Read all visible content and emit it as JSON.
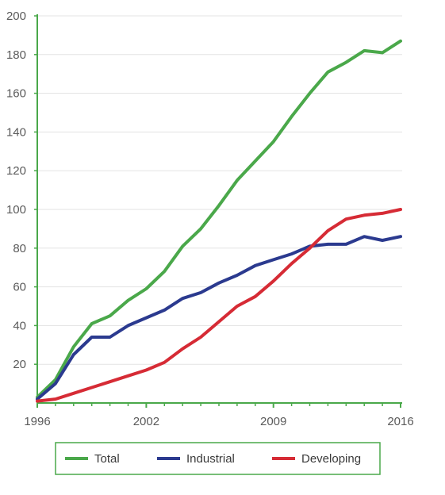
{
  "chart_data": {
    "type": "line",
    "title": "",
    "xlabel": "",
    "ylabel": "",
    "xlim": [
      1996,
      2016
    ],
    "ylim": [
      0,
      200
    ],
    "grid": "horizontal",
    "legend_placement": "bottom",
    "x_ticks": [
      "1996",
      "2002",
      "2009",
      "2016"
    ],
    "y_ticks": [
      "20",
      "40",
      "60",
      "80",
      "100",
      "120",
      "140",
      "160",
      "180",
      "200"
    ],
    "x": [
      1996,
      1997,
      1998,
      1999,
      2000,
      2001,
      2002,
      2003,
      2004,
      2005,
      2006,
      2007,
      2008,
      2009,
      2010,
      2011,
      2012,
      2013,
      2014,
      2015,
      2016
    ],
    "series": [
      {
        "name": "Total",
        "color": "#4aa84a",
        "values": [
          3,
          12,
          29,
          41,
          45,
          53,
          59,
          68,
          81,
          90,
          102,
          115,
          125,
          135,
          148,
          160,
          171,
          176,
          182,
          181,
          187
        ]
      },
      {
        "name": "Industrial",
        "color": "#2b3a8f",
        "values": [
          2,
          10,
          25,
          34,
          34,
          40,
          44,
          48,
          54,
          57,
          62,
          66,
          71,
          74,
          77,
          81,
          82,
          82,
          86,
          84,
          86
        ]
      },
      {
        "name": "Developing",
        "color": "#d62b35",
        "values": [
          1,
          2,
          5,
          8,
          11,
          14,
          17,
          21,
          28,
          34,
          42,
          50,
          55,
          63,
          72,
          80,
          89,
          95,
          97,
          98,
          100
        ]
      }
    ]
  }
}
